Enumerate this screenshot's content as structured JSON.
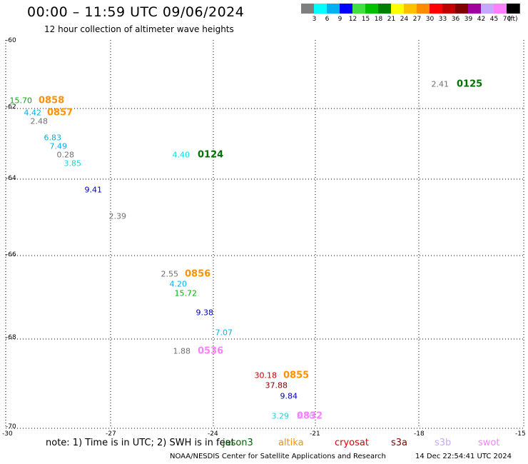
{
  "header": {
    "title": "00:00 – 11:59 UTC 09/06/2024",
    "subtitle": "12 hour collection of altimeter wave heights"
  },
  "legend": {
    "labels": [
      "3",
      "6",
      "9",
      "12",
      "15",
      "18",
      "21",
      "24",
      "27",
      "30",
      "33",
      "36",
      "39",
      "42",
      "45",
      "70"
    ],
    "unit": "(ft)",
    "colors": [
      "#7f7f7f",
      "#00ffff",
      "#00b0f0",
      "#0000ff",
      "#40e040",
      "#00c000",
      "#008000",
      "#ffff00",
      "#ffc000",
      "#ff8c00",
      "#ff0000",
      "#c00000",
      "#800000",
      "#a000a0",
      "#c8a8ff",
      "#ff80ff",
      "#000000"
    ]
  },
  "axes": {
    "lon_ticks": [
      "-30",
      "-27",
      "-24",
      "-21",
      "-18",
      "-15"
    ],
    "lat_ticks": [
      "-60",
      "-62",
      "-64",
      "-66",
      "-68",
      "-70"
    ]
  },
  "measurements": [
    {
      "value": "15.70",
      "color": "#00b000"
    },
    {
      "value": "4.42",
      "color": "#00b0f0"
    },
    {
      "value": "2.48",
      "color": "#707070"
    },
    {
      "value": "6.83",
      "color": "#00b0f0"
    },
    {
      "value": "7.49",
      "color": "#00b0f0"
    },
    {
      "value": "0.28",
      "color": "#707070"
    },
    {
      "value": "3.85",
      "color": "#00e0e0"
    },
    {
      "value": "9.41",
      "color": "#0000c0"
    },
    {
      "value": "2.39",
      "color": "#707070"
    },
    {
      "value": "4.40",
      "color": "#00e0e0"
    },
    {
      "value": "2.41",
      "color": "#707070"
    },
    {
      "value": "2.55",
      "color": "#707070"
    },
    {
      "value": "4.20",
      "color": "#00b0f0"
    },
    {
      "value": "15.72",
      "color": "#00b000"
    },
    {
      "value": "9.38",
      "color": "#0000c0"
    },
    {
      "value": "7.07",
      "color": "#00b0f0"
    },
    {
      "value": "1.88",
      "color": "#707070"
    },
    {
      "value": "30.18",
      "color": "#c00000"
    },
    {
      "value": "37.88",
      "color": "#800000"
    },
    {
      "value": "9.84",
      "color": "#0000c0"
    },
    {
      "value": "3.29",
      "color": "#00e0e0"
    },
    {
      "value": "3.36",
      "color": "#c8a8ff"
    }
  ],
  "pass_times": [
    {
      "time": "0858",
      "color": "#ff9000"
    },
    {
      "time": "0857",
      "color": "#ff9000"
    },
    {
      "time": "0124",
      "color": "#007000"
    },
    {
      "time": "0125",
      "color": "#007000"
    },
    {
      "time": "0856",
      "color": "#ff9000"
    },
    {
      "time": "0536",
      "color": "#ff80ff"
    },
    {
      "time": "0855",
      "color": "#ff9000"
    },
    {
      "time": "0832",
      "color": "#ff80ff"
    }
  ],
  "footer": {
    "note": "note:  1) Time is in UTC;  2) SWH is in feet",
    "satellites": [
      {
        "name": "jason3",
        "color": "#006000"
      },
      {
        "name": "altika",
        "color": "#ff9000"
      },
      {
        "name": "cryosat",
        "color": "#e00000"
      },
      {
        "name": "s3a",
        "color": "#800000"
      },
      {
        "name": "s3b",
        "color": "#c8a8ff"
      },
      {
        "name": "swot",
        "color": "#ff80ff"
      }
    ],
    "credit": "NOAA/NESDIS Center for Satellite Applications and Research",
    "timestamp": "14 Dec 22:54:41 UTC 2024"
  }
}
